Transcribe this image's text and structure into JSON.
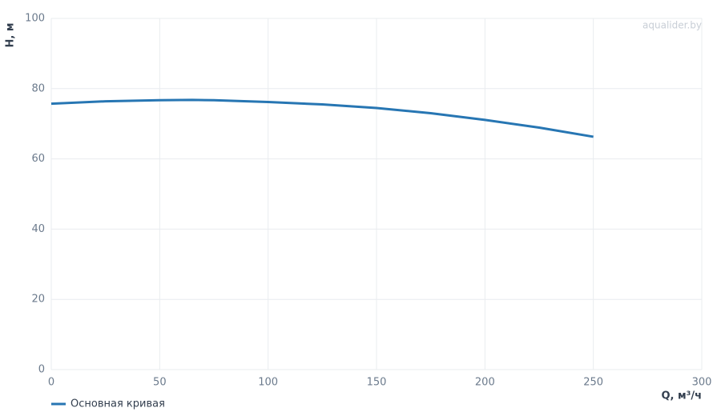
{
  "chart_data": {
    "type": "line",
    "watermark": "aqualider.by",
    "x_label": "Q, м³/ч",
    "y_label": "H, м",
    "x": [
      0,
      25,
      50,
      65,
      75,
      100,
      125,
      150,
      175,
      200,
      225,
      250
    ],
    "series": [
      {
        "name": "Основная кривая",
        "color": "#2776b3",
        "values": [
          75.7,
          76.4,
          76.7,
          76.8,
          76.7,
          76.2,
          75.5,
          74.5,
          73.0,
          71.1,
          68.9,
          66.3
        ]
      }
    ],
    "xlim": [
      0,
      300
    ],
    "xticks": [
      0,
      50,
      100,
      150,
      200,
      250,
      300
    ],
    "ylim": [
      0,
      100
    ],
    "yticks": [
      0,
      20,
      40,
      60,
      80,
      100
    ],
    "grid": true,
    "legend": "bottom-left"
  }
}
